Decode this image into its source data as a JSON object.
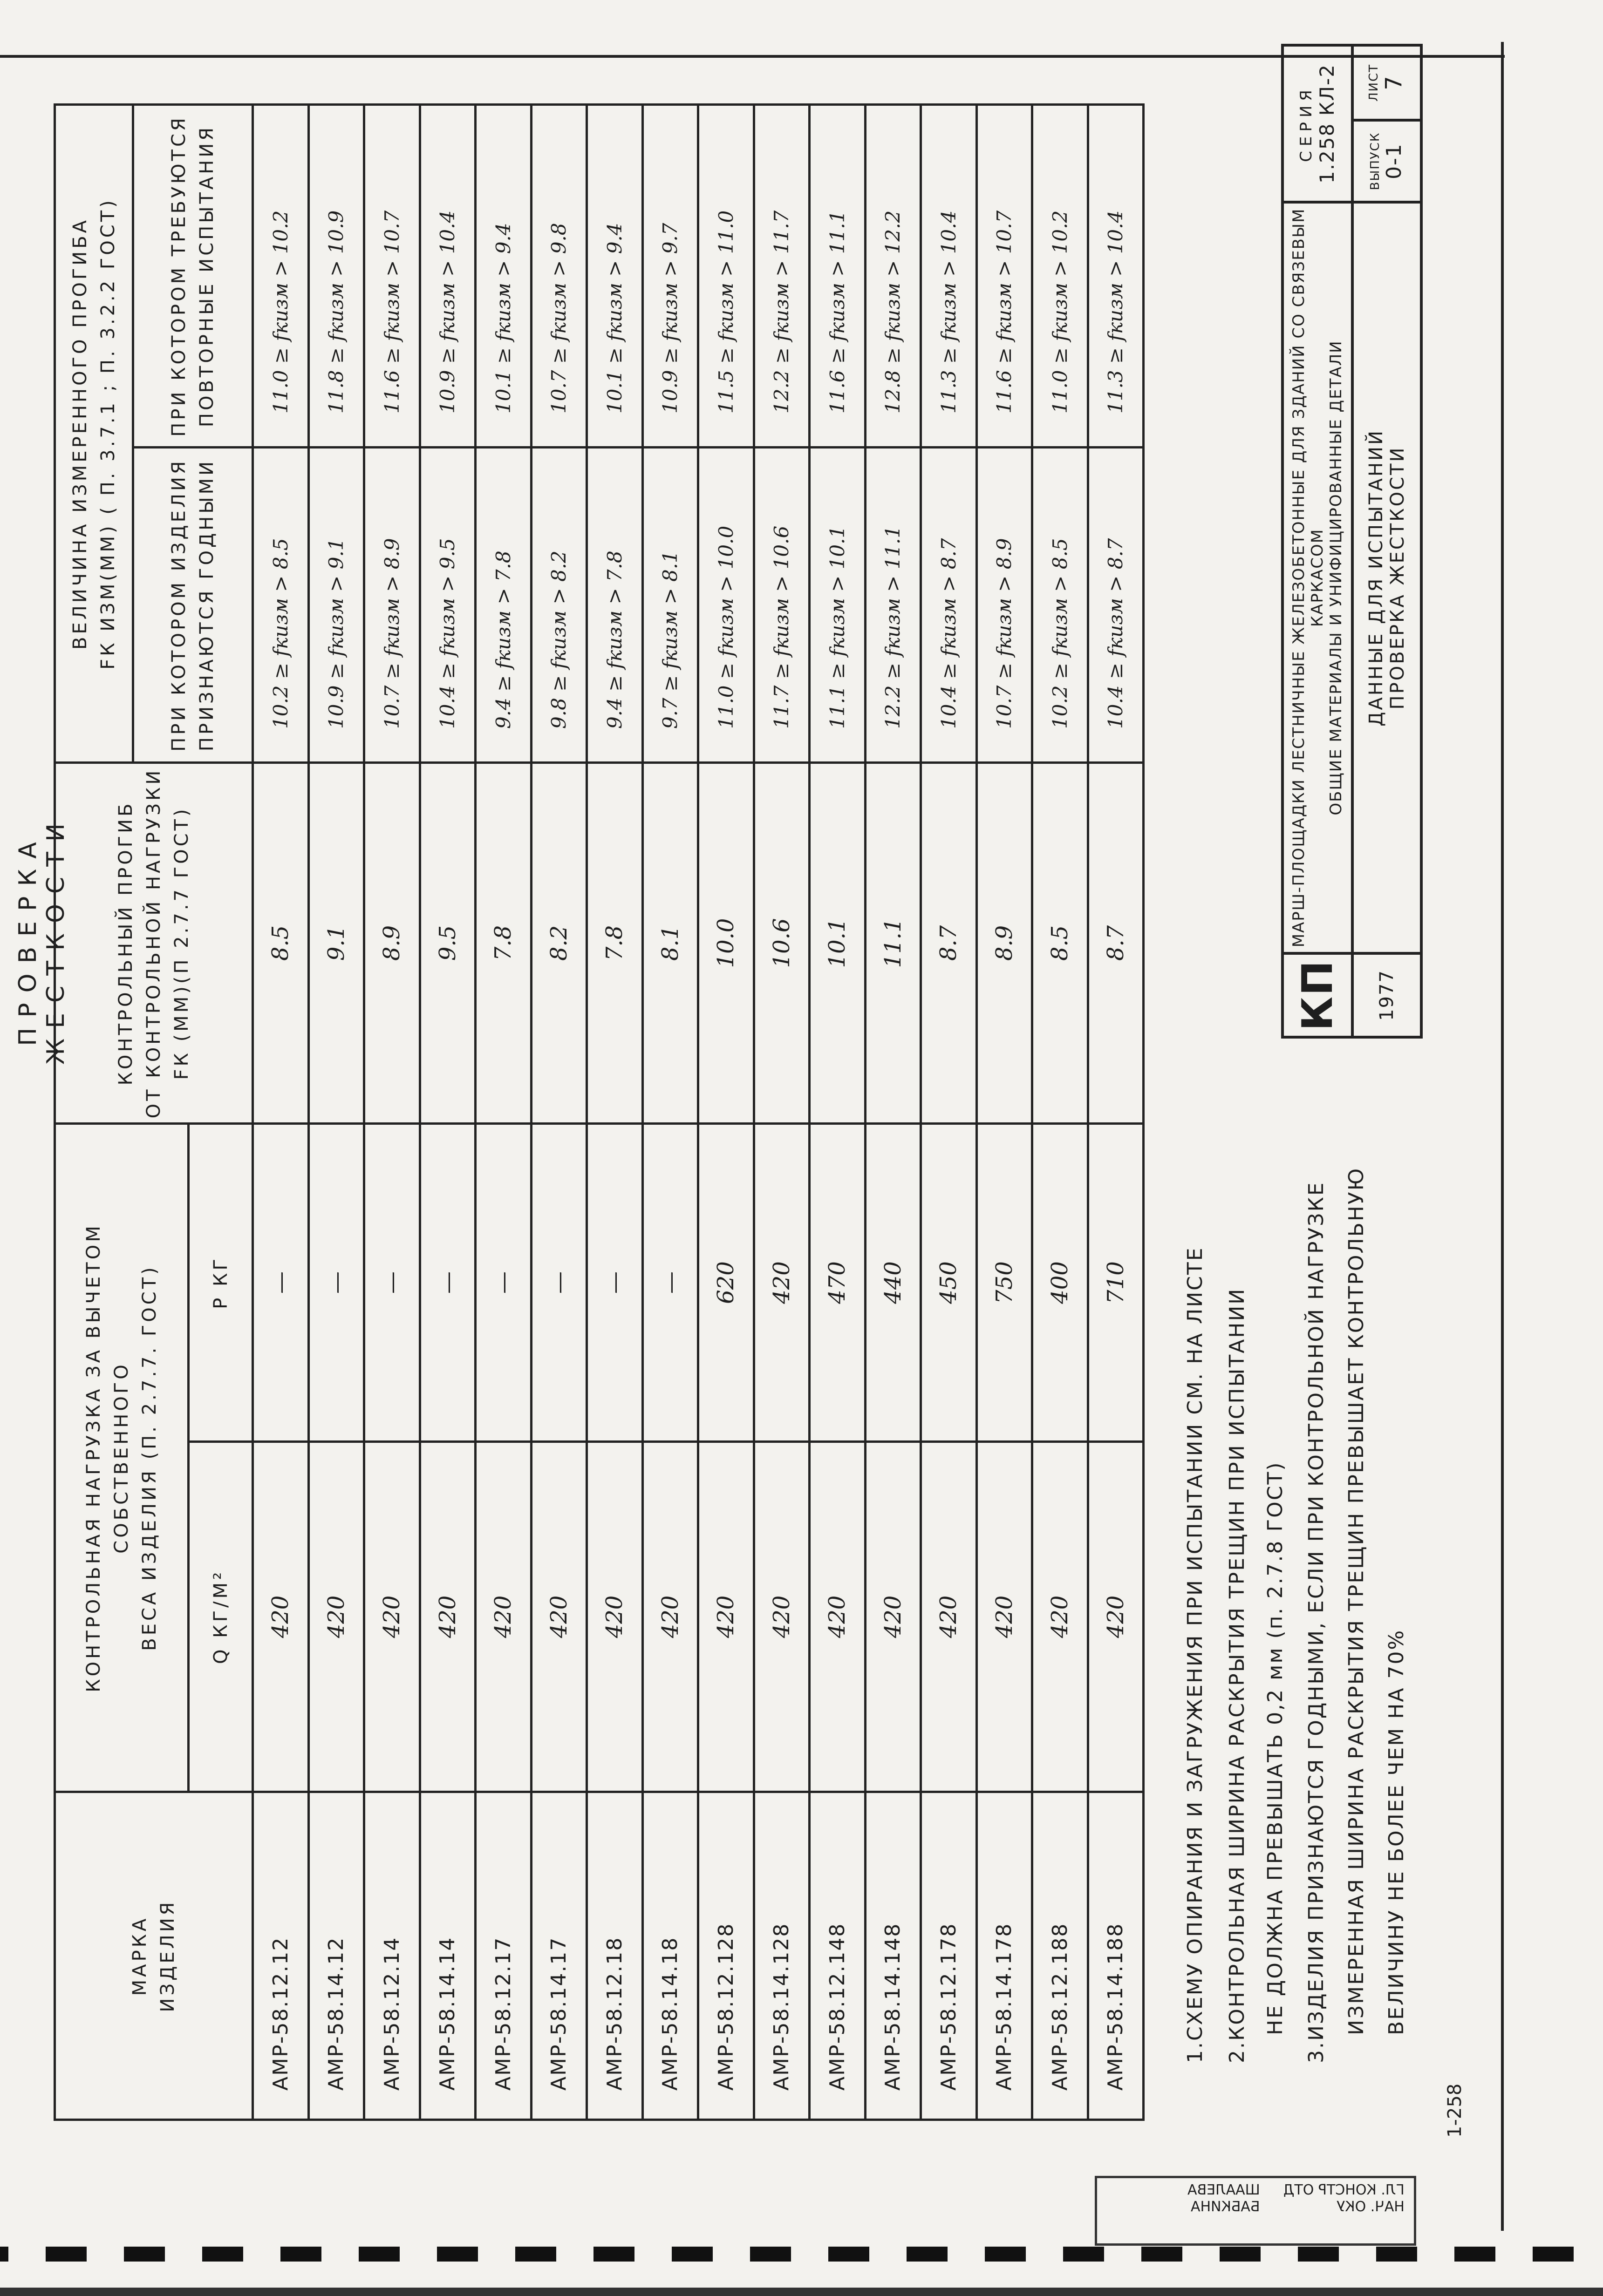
{
  "sheet": {
    "title": "ПРОВЕРКА  ЖЕСТКОСТИ"
  },
  "table": {
    "headers": {
      "mark": [
        "Марка",
        "изделия"
      ],
      "load_group": [
        "Контрольная нагрузка за вычетом собственного",
        "веса изделия  (п. 2.7.7. ГОСТ)"
      ],
      "q": "q кг/м²",
      "p": "P кг",
      "fk": [
        "Контрольный прогиб",
        "от контрольной нагрузки",
        "fк (мм)(п 2.7.7 ГОСТ)"
      ],
      "measured_group": [
        "Величина измеренного прогиба",
        "fк изм(мм) ( п. 3.7.1 ; п. 3.2.2 ГОСТ)"
      ],
      "good": [
        "при котором изделия",
        "признаются годными"
      ],
      "repeat": [
        "при котором требуются",
        "повторные испытания"
      ]
    },
    "rows": [
      {
        "mark": "АМР-58.12.12",
        "q": "420",
        "p": "—",
        "fk": "8.5",
        "good": "10.2 ≥ fкизм > 8.5",
        "repeat": "11.0 ≥ fкизм > 10.2"
      },
      {
        "mark": "АМР-58.14.12",
        "q": "420",
        "p": "—",
        "fk": "9.1",
        "good": "10.9 ≥ fкизм > 9.1",
        "repeat": "11.8 ≥ fкизм > 10.9"
      },
      {
        "mark": "АМР-58.12.14",
        "q": "420",
        "p": "—",
        "fk": "8.9",
        "good": "10.7 ≥ fкизм > 8.9",
        "repeat": "11.6 ≥ fкизм > 10.7"
      },
      {
        "mark": "АМР-58.14.14",
        "q": "420",
        "p": "—",
        "fk": "9.5",
        "good": "10.4 ≥ fкизм > 9.5",
        "repeat": "10.9 ≥ fкизм > 10.4"
      },
      {
        "mark": "АМР-58.12.17",
        "q": "420",
        "p": "—",
        "fk": "7.8",
        "good": "9.4 ≥ fкизм > 7.8",
        "repeat": "10.1 ≥ fкизм > 9.4"
      },
      {
        "mark": "АМР-58.14.17",
        "q": "420",
        "p": "—",
        "fk": "8.2",
        "good": "9.8 ≥ fкизм > 8.2",
        "repeat": "10.7 ≥ fкизм > 9.8"
      },
      {
        "mark": "АМР-58.12.18",
        "q": "420",
        "p": "—",
        "fk": "7.8",
        "good": "9.4 ≥ fкизм > 7.8",
        "repeat": "10.1 ≥ fкизм > 9.4"
      },
      {
        "mark": "АМР-58.14.18",
        "q": "420",
        "p": "—",
        "fk": "8.1",
        "good": "9.7 ≥ fкизм > 8.1",
        "repeat": "10.9 ≥ fкизм > 9.7"
      },
      {
        "mark": "АМР-58.12.128",
        "q": "420",
        "p": "620",
        "fk": "10.0",
        "good": "11.0 ≥ fкизм > 10.0",
        "repeat": "11.5 ≥ fкизм > 11.0"
      },
      {
        "mark": "АМР-58.14.128",
        "q": "420",
        "p": "420",
        "fk": "10.6",
        "good": "11.7 ≥ fкизм > 10.6",
        "repeat": "12.2 ≥ fкизм > 11.7"
      },
      {
        "mark": "АМР-58.12.148",
        "q": "420",
        "p": "470",
        "fk": "10.1",
        "good": "11.1 ≥ fкизм > 10.1",
        "repeat": "11.6 ≥ fкизм > 11.1"
      },
      {
        "mark": "АМР-58.14.148",
        "q": "420",
        "p": "440",
        "fk": "11.1",
        "good": "12.2 ≥ fкизм > 11.1",
        "repeat": "12.8 ≥ fкизм > 12.2"
      },
      {
        "mark": "АМР-58.12.178",
        "q": "420",
        "p": "450",
        "fk": "8.7",
        "good": "10.4 ≥ fкизм > 8.7",
        "repeat": "11.3 ≥ fкизм > 10.4"
      },
      {
        "mark": "АМР-58.14.178",
        "q": "420",
        "p": "750",
        "fk": "8.9",
        "good": "10.7 ≥ fкизм > 8.9",
        "repeat": "11.6 ≥ fкизм > 10.7"
      },
      {
        "mark": "АМР-58.12.188",
        "q": "420",
        "p": "400",
        "fk": "8.5",
        "good": "10.2 ≥ fкизм > 8.5",
        "repeat": "11.0 ≥ fкизм > 10.2"
      },
      {
        "mark": "АМР-58.14.188",
        "q": "420",
        "p": "710",
        "fk": "8.7",
        "good": "10.4 ≥ fкизм > 8.7",
        "repeat": "11.3 ≥ fкизм > 10.4"
      }
    ]
  },
  "notes": [
    "1.СХЕМУ ОПИРАНИЯ И ЗАГРУЖЕНИЯ ПРИ ИСПЫТАНИИ СМ. НА ЛИСТЕ",
    "2.КОНТРОЛЬНАЯ ШИРИНА РАСКРЫТИЯ ТРЕЩИН ПРИ ИСПЫТАНИИ",
    "НЕ ДОЛЖНА ПРЕВЫШАТЬ 0,2 мм (п. 2.7.8 ГОСТ)",
    "3.ИЗДЕЛИЯ ПРИЗНАЮТСЯ ГОДНЫМИ, ЕСЛИ ПРИ КОНТРОЛЬНОЙ НАГРУЗКЕ",
    "ИЗМЕРЕННАЯ ШИРИНА РАСКРЫТИЯ ТРЕЩИН ПРЕВЫШАЕТ КОНТРОЛЬНУЮ",
    "ВЕЛИЧИНУ НЕ БОЛЕЕ ЧЕМ НА 70%"
  ],
  "title_block": {
    "logo": "КП",
    "year": "1977",
    "project_line1": "МАРШ-ПЛОЩАДКИ ЛЕСТНИЧНЫЕ ЖЕЛЕЗОБЕТОННЫЕ ДЛЯ ЗДАНИЙ СО СВЯЗЕВЫМ КАРКАСОМ",
    "project_line2": "ОБЩИЕ МАТЕРИАЛЫ И УНИФИЦИРОВАННЫЕ ДЕТАЛИ",
    "sheet_line1": "ДАННЫЕ  ДЛЯ  ИСПЫТАНИЙ",
    "sheet_line2": "ПРОВЕРКА  ЖЕСТКОСТИ",
    "series_label": "СЕРИЯ",
    "series": "1.258 КЛ-2",
    "issue_label": "ВЫПУСК",
    "issue": "0-1",
    "sheet_label": "ЛИСТ",
    "sheet_no": "7"
  },
  "stamp": {
    "rows": [
      "ГЛ. КОНСТР ОТД",
      "НАЧ. ОКУ",
      "ШААЛЕВА",
      "БАБКИНА"
    ],
    "code": "1-258"
  }
}
